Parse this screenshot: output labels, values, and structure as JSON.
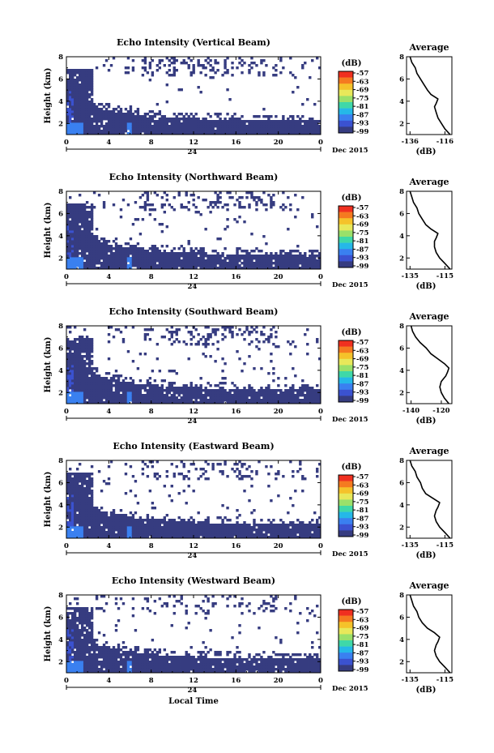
{
  "figure": {
    "xlabel": "Local Time",
    "colorbar_unit": "(dB)",
    "colorbar_ticks": [
      "-57",
      "-63",
      "-69",
      "-75",
      "-81",
      "-87",
      "-93",
      "-99"
    ],
    "colorbar_colors": [
      "#f03020",
      "#f57a20",
      "#f5c22a",
      "#e8e85a",
      "#9ae06a",
      "#3fd8a8",
      "#25b8e8",
      "#3a80f0",
      "#3b52d0",
      "#363c80"
    ]
  },
  "chart_data": [
    {
      "type": "heatmap",
      "title": "Echo Intensity (Vertical Beam)",
      "ylabel": "Height (km)",
      "xlim": [
        0,
        24
      ],
      "ylim": [
        1,
        8
      ],
      "xticks": [
        "0",
        "4",
        "8",
        "12",
        "16",
        "20",
        "0"
      ],
      "yticks": [
        "2",
        "4",
        "6",
        "8"
      ],
      "date_midnight": "24",
      "date_label": "Dec 2015",
      "profile": {
        "title": "Average",
        "xlabel": "(dB)",
        "xticks": [
          "-136",
          "-116"
        ],
        "xlim": [
          -138,
          -112
        ],
        "yticks": [
          "2",
          "4",
          "6",
          "8"
        ],
        "heights": [
          1,
          1.5,
          2,
          2.5,
          3,
          3.5,
          3.8,
          4.2,
          4.6,
          5,
          5.5,
          6,
          6.5,
          7,
          7.5,
          8
        ],
        "values": [
          -113,
          -116,
          -118,
          -120,
          -121,
          -122,
          -121,
          -120,
          -124,
          -126,
          -128,
          -130,
          -132,
          -133,
          -135,
          -136
        ]
      }
    },
    {
      "type": "heatmap",
      "title": "Echo Intensity (Northward Beam)",
      "ylabel": "Height (km)",
      "xlim": [
        0,
        24
      ],
      "ylim": [
        1,
        8
      ],
      "xticks": [
        "0",
        "4",
        "8",
        "12",
        "16",
        "20",
        "0"
      ],
      "yticks": [
        "2",
        "4",
        "6",
        "8"
      ],
      "date_midnight": "24",
      "date_label": "Dec 2015",
      "profile": {
        "title": "Average",
        "xlabel": "(dB)",
        "xticks": [
          "-135",
          "-115"
        ],
        "xlim": [
          -137,
          -111
        ],
        "yticks": [
          "2",
          "4",
          "6",
          "8"
        ],
        "heights": [
          1,
          1.5,
          2,
          2.5,
          3,
          3.5,
          3.8,
          4.2,
          4.6,
          5,
          5.5,
          6,
          6.5,
          7,
          7.5,
          8
        ],
        "values": [
          -112,
          -115,
          -118,
          -120,
          -121,
          -121,
          -120,
          -119,
          -123,
          -126,
          -128,
          -130,
          -131,
          -133,
          -134,
          -135
        ]
      }
    },
    {
      "type": "heatmap",
      "title": "Echo Intensity (Southward Beam)",
      "ylabel": "Height (km)",
      "xlim": [
        0,
        24
      ],
      "ylim": [
        1,
        8
      ],
      "xticks": [
        "0",
        "4",
        "8",
        "12",
        "16",
        "20",
        "0"
      ],
      "yticks": [
        "2",
        "4",
        "6",
        "8"
      ],
      "date_midnight": "24",
      "date_label": "Dec 2015",
      "profile": {
        "title": "Average",
        "xlabel": "(dB)",
        "xticks": [
          "-140",
          "-120"
        ],
        "xlim": [
          -143,
          -113
        ],
        "yticks": [
          "2",
          "4",
          "6",
          "8"
        ],
        "heights": [
          1,
          1.5,
          2,
          2.5,
          3,
          3.5,
          3.8,
          4.2,
          4.6,
          5,
          5.5,
          6,
          6.5,
          7,
          7.5,
          8
        ],
        "values": [
          -115,
          -118,
          -120,
          -121,
          -120,
          -117,
          -116,
          -115,
          -118,
          -122,
          -127,
          -130,
          -134,
          -137,
          -139,
          -140
        ]
      }
    },
    {
      "type": "heatmap",
      "title": "Echo Intensity (Eastward Beam)",
      "ylabel": "Height (km)",
      "xlim": [
        0,
        24
      ],
      "ylim": [
        1,
        8
      ],
      "xticks": [
        "0",
        "4",
        "8",
        "12",
        "16",
        "20",
        "0"
      ],
      "yticks": [
        "2",
        "4",
        "6",
        "8"
      ],
      "date_midnight": "24",
      "date_label": "Dec 2015",
      "profile": {
        "title": "Average",
        "xlabel": "(dB)",
        "xticks": [
          "-135",
          "-115"
        ],
        "xlim": [
          -137,
          -111
        ],
        "yticks": [
          "2",
          "4",
          "6",
          "8"
        ],
        "heights": [
          1,
          1.5,
          2,
          2.5,
          3,
          3.5,
          3.8,
          4.2,
          4.6,
          5,
          5.5,
          6,
          6.5,
          7,
          7.5,
          8
        ],
        "values": [
          -112,
          -115,
          -118,
          -120,
          -121,
          -120,
          -119,
          -118,
          -122,
          -126,
          -128,
          -129,
          -131,
          -132,
          -134,
          -135
        ]
      }
    },
    {
      "type": "heatmap",
      "title": "Echo Intensity (Westward Beam)",
      "ylabel": "Height (km)",
      "xlim": [
        0,
        24
      ],
      "ylim": [
        1,
        8
      ],
      "xticks": [
        "0",
        "4",
        "8",
        "12",
        "16",
        "20",
        "0"
      ],
      "yticks": [
        "2",
        "4",
        "6",
        "8"
      ],
      "date_midnight": "24",
      "date_label": "Dec 2015",
      "profile": {
        "title": "Average",
        "xlabel": "(dB)",
        "xticks": [
          "-135",
          "-115"
        ],
        "xlim": [
          -137,
          -111
        ],
        "yticks": [
          "2",
          "4",
          "6",
          "8"
        ],
        "heights": [
          1,
          1.5,
          2,
          2.5,
          3,
          3.5,
          3.8,
          4.2,
          4.6,
          5,
          5.5,
          6,
          6.5,
          7,
          7.5,
          8
        ],
        "values": [
          -112,
          -115,
          -118,
          -120,
          -121,
          -120,
          -119,
          -118,
          -121,
          -125,
          -128,
          -130,
          -131,
          -133,
          -134,
          -135
        ]
      }
    }
  ]
}
